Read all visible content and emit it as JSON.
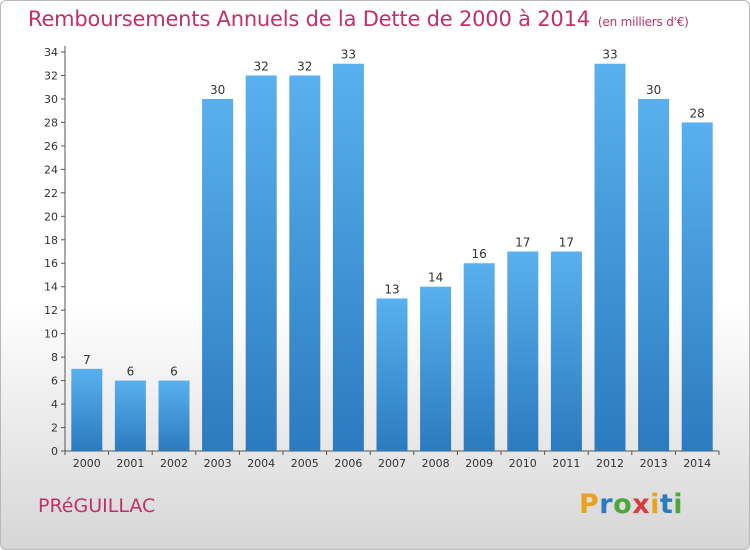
{
  "chart_data": {
    "type": "bar",
    "title": "Remboursements Annuels de la Dette de 2000 à 2014",
    "subtitle": "(en milliers d'€)",
    "categories": [
      "2000",
      "2001",
      "2002",
      "2003",
      "2004",
      "2005",
      "2006",
      "2007",
      "2008",
      "2009",
      "2010",
      "2011",
      "2012",
      "2013",
      "2014"
    ],
    "values": [
      7,
      6,
      6,
      30,
      32,
      32,
      33,
      13,
      14,
      16,
      17,
      17,
      33,
      30,
      28
    ],
    "yticks": [
      0,
      2,
      4,
      6,
      8,
      10,
      12,
      14,
      16,
      18,
      20,
      22,
      24,
      26,
      28,
      30,
      32,
      34
    ],
    "ylim": [
      0,
      34
    ],
    "grid": false,
    "bar_color_top": "#5ab0ee",
    "bar_color_bottom": "#2a7bbf"
  },
  "footer": {
    "town": "PRéGUILLAC",
    "logo_letters": [
      {
        "ch": "P",
        "color": "#e8a21c"
      },
      {
        "ch": "r",
        "color": "#2a7bbf"
      },
      {
        "ch": "o",
        "color": "#4ea53c"
      },
      {
        "ch": "x",
        "color": "#d63c3c"
      },
      {
        "ch": "i",
        "color": "#e8a21c"
      },
      {
        "ch": "t",
        "color": "#2a7bbf"
      },
      {
        "ch": "i",
        "color": "#4ea53c"
      }
    ]
  }
}
